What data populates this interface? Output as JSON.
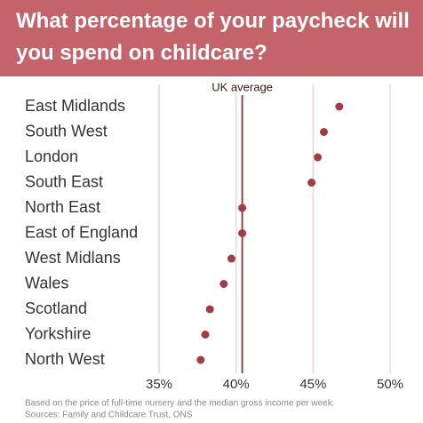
{
  "chart_data": {
    "type": "dot",
    "title": "What percentage of your paycheck will you spend on childcare?",
    "categories": [
      "East Midlands",
      "South West",
      "London",
      "South East",
      "North East",
      "East of England",
      "West Midlans",
      "Wales",
      "Scotland",
      "Yorkshire",
      "North West"
    ],
    "values": [
      46.7,
      45.7,
      45.3,
      44.9,
      40.4,
      40.4,
      39.7,
      39.2,
      38.3,
      38.0,
      37.7
    ],
    "color": "#a23b45",
    "xlim": [
      35,
      50
    ],
    "xticks": [
      {
        "value": 35,
        "label": "35%"
      },
      {
        "value": 40,
        "label": "40%"
      },
      {
        "value": 45,
        "label": "45%"
      },
      {
        "value": 50,
        "label": "50%"
      }
    ],
    "grid": true,
    "reference": {
      "label": "UK average",
      "value": 40.4,
      "color": "#8a4a4a"
    },
    "note": "Based on the price of full-time nursery and the median gross income per week.",
    "source": "Sources: Family and Childcare Trust, ONS"
  }
}
